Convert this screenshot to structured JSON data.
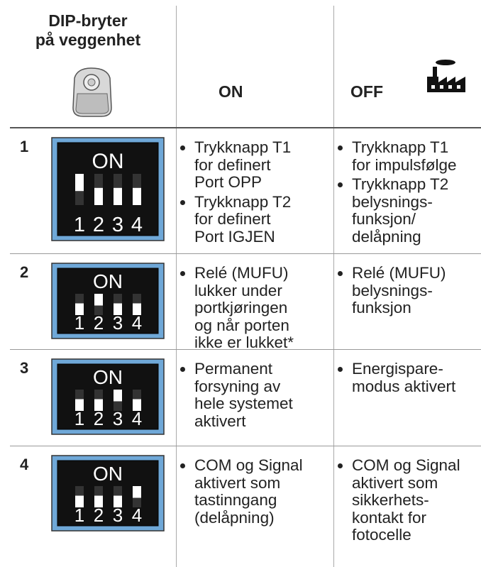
{
  "header": {
    "title_lines": [
      "DIP-bryter",
      "på veggenhet"
    ],
    "on": "ON",
    "off": "OFF"
  },
  "rows": [
    {
      "number": "1",
      "dip": {
        "label": "ON",
        "numbers": [
          "1",
          "2",
          "3",
          "4"
        ],
        "up": [
          true,
          false,
          false,
          false
        ]
      },
      "on": [
        [
          "Trykknapp T1",
          "for definert",
          "Port OPP"
        ],
        [
          "Trykknapp T2",
          "for definert",
          "Port IGJEN"
        ]
      ],
      "off": [
        [
          "Trykknapp T1",
          "for impulsfølge"
        ],
        [
          "Trykknapp T2",
          "belysnings-",
          "funksjon/",
          "delåpning"
        ]
      ]
    },
    {
      "number": "2",
      "dip": {
        "label": "ON",
        "numbers": [
          "1",
          "2",
          "3",
          "4"
        ],
        "up": [
          false,
          true,
          false,
          false
        ]
      },
      "on": [
        [
          "Relé (MUFU)",
          "lukker under",
          "portkjøringen",
          "og når porten",
          "ikke er lukket*"
        ]
      ],
      "off": [
        [
          "Relé (MUFU)",
          "belysnings-",
          "funksjon"
        ]
      ]
    },
    {
      "number": "3",
      "dip": {
        "label": "ON",
        "numbers": [
          "1",
          "2",
          "3",
          "4"
        ],
        "up": [
          false,
          false,
          true,
          false
        ]
      },
      "on": [
        [
          "Permanent",
          "forsyning av",
          "hele systemet",
          "aktivert"
        ]
      ],
      "off": [
        [
          "Energispare-",
          "modus aktivert"
        ]
      ]
    },
    {
      "number": "4",
      "dip": {
        "label": "ON",
        "numbers": [
          "1",
          "2",
          "3",
          "4"
        ],
        "up": [
          false,
          false,
          false,
          true
        ]
      },
      "on": [
        [
          "COM og Signal",
          "aktivert som",
          "tastinngang",
          "(delåpning)"
        ]
      ],
      "off": [
        [
          "COM og Signal",
          "aktivert som",
          "sikkerhets-",
          "kontakt for",
          "fotocelle"
        ]
      ]
    }
  ]
}
